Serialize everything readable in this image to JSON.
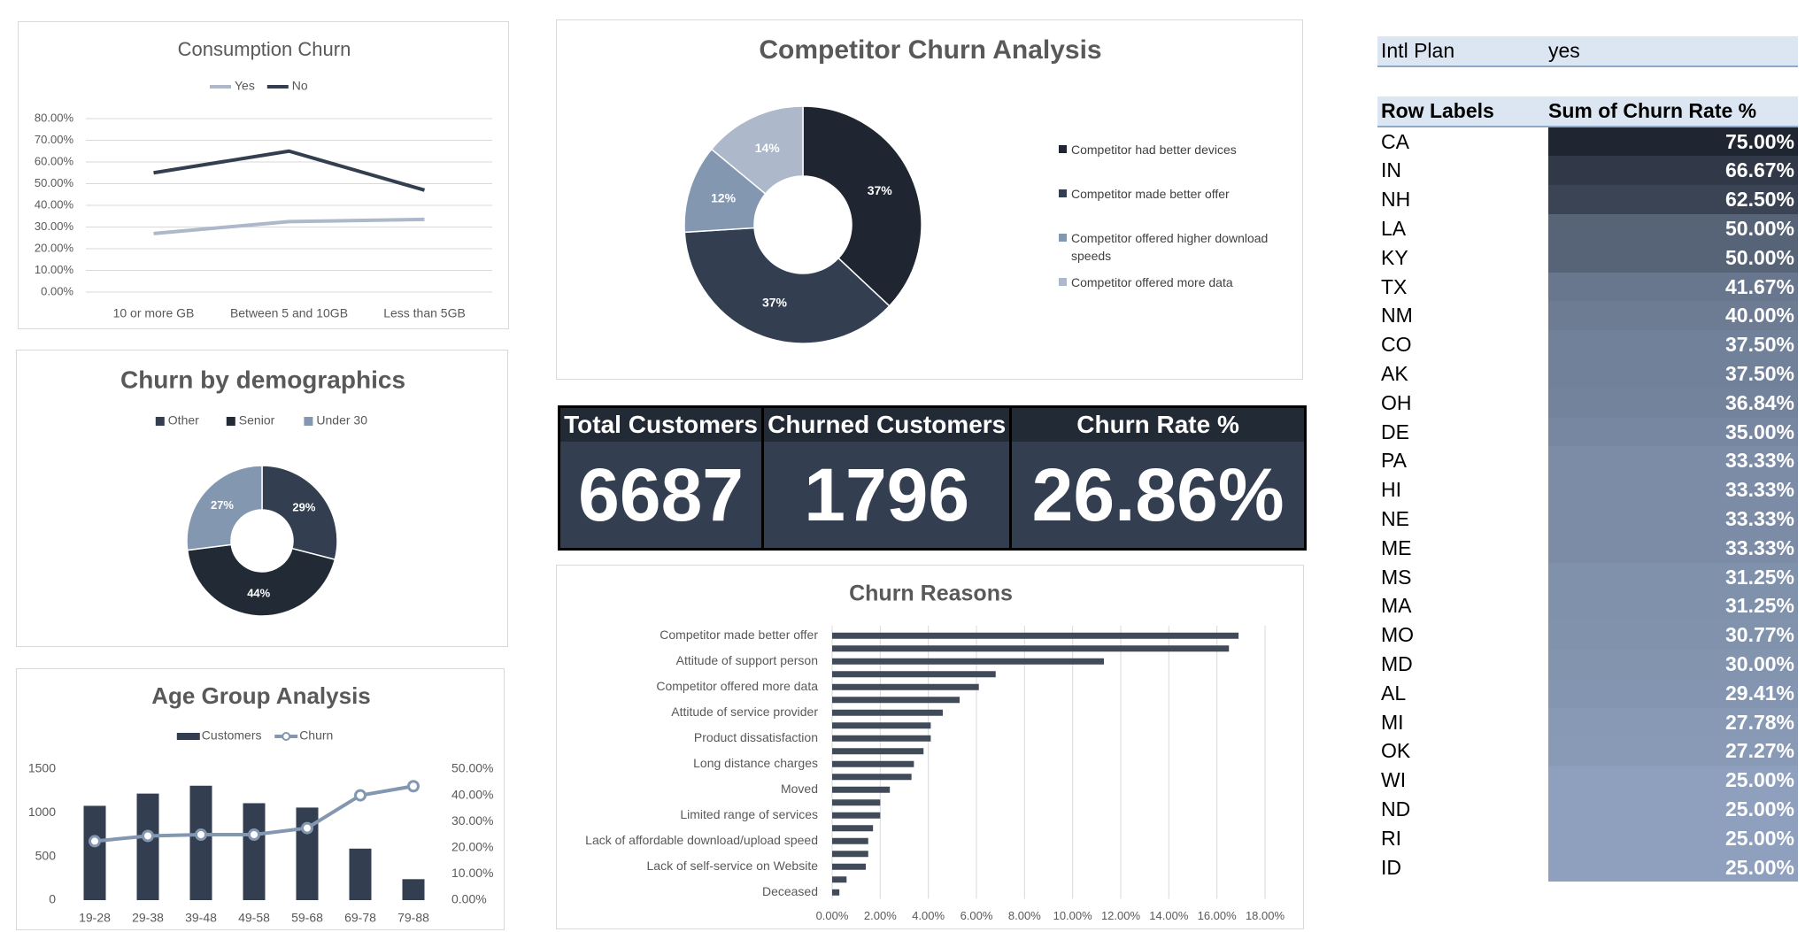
{
  "chart_data": [
    {
      "type": "line",
      "title": "Consumption Churn",
      "categories": [
        "10 or more GB",
        "Between 5 and 10GB",
        "Less than 5GB"
      ],
      "series": [
        {
          "name": "Yes",
          "color": "#adb9ca",
          "values": [
            27,
            32.5,
            33.5
          ]
        },
        {
          "name": "No",
          "color": "#333f50",
          "values": [
            55,
            65,
            47
          ]
        }
      ],
      "ylim": [
        0,
        80
      ],
      "yticks": [
        {
          "value": 0,
          "label": "0.00%"
        },
        {
          "value": 10,
          "label": "10.00%"
        },
        {
          "value": 20,
          "label": "20.00%"
        },
        {
          "value": 30,
          "label": "30.00%"
        },
        {
          "value": 40,
          "label": "40.00%"
        },
        {
          "value": 50,
          "label": "50.00%"
        },
        {
          "value": 60,
          "label": "60.00%"
        },
        {
          "value": 70,
          "label": "70.00%"
        },
        {
          "value": 80,
          "label": "80.00%"
        }
      ],
      "grid": true,
      "legend": "top"
    },
    {
      "type": "donut",
      "title": "Competitor Churn Analysis",
      "categories": [
        "Competitor had better devices",
        "Competitor made better offer",
        "Competitor offered higher download speeds",
        "Competitor offered more data"
      ],
      "values": [
        37,
        37,
        12,
        14
      ],
      "value_labels": [
        "37%",
        "37%",
        "12%",
        "14%"
      ],
      "colors": [
        "#1f2531",
        "#333f50",
        "#8497b0",
        "#adb9ca"
      ],
      "legend": "right"
    },
    {
      "type": "donut",
      "title": "Churn by demographics",
      "categories": [
        "Other",
        "Senior",
        "Under 30"
      ],
      "values": [
        29,
        44,
        27
      ],
      "value_labels": [
        "29%",
        "44%",
        "27%"
      ],
      "colors": [
        "#333f50",
        "#222a35",
        "#8497b0"
      ],
      "legend": "top"
    },
    {
      "type": "combo",
      "title": "Age Group Analysis",
      "categories": [
        "19-28",
        "29-38",
        "39-48",
        "49-58",
        "59-68",
        "69-78",
        "79-88"
      ],
      "series": [
        {
          "name": "Customers",
          "type": "bar",
          "color": "#333f50",
          "values": [
            1080,
            1220,
            1310,
            1110,
            1060,
            590,
            240
          ]
        },
        {
          "name": "Churn",
          "type": "line",
          "axis": "y2",
          "color": "#8497b0",
          "values": [
            22.5,
            24.5,
            25,
            25,
            27.5,
            40,
            43.5
          ]
        }
      ],
      "ylim": [
        0,
        1500
      ],
      "yticks": [
        0,
        500,
        1000,
        1500
      ],
      "y2lim": [
        0,
        50
      ],
      "y2ticks": [
        {
          "value": 0,
          "label": "0.00%"
        },
        {
          "value": 10,
          "label": "10.00%"
        },
        {
          "value": 20,
          "label": "20.00%"
        },
        {
          "value": 30,
          "label": "30.00%"
        },
        {
          "value": 40,
          "label": "40.00%"
        },
        {
          "value": 50,
          "label": "50.00%"
        }
      ],
      "grid": false,
      "legend": "top"
    },
    {
      "type": "barh",
      "title": "Churn Reasons",
      "categories": [
        "Competitor made better offer",
        null,
        "Attitude of support person",
        null,
        "Competitor offered more data",
        null,
        "Attitude of service provider",
        null,
        "Product dissatisfaction",
        null,
        "Long distance charges",
        null,
        "Moved",
        null,
        "Limited range of services",
        null,
        "Lack of affordable download/upload speed",
        null,
        "Lack of self-service on Website",
        null,
        "Deceased"
      ],
      "values": [
        16.9,
        16.5,
        11.3,
        6.8,
        6.1,
        5.3,
        4.6,
        4.1,
        4.1,
        3.8,
        3.4,
        3.3,
        2.4,
        2.0,
        2.0,
        1.7,
        1.5,
        1.5,
        1.4,
        0.6,
        0.3
      ],
      "color": "#404a59",
      "xlim": [
        0,
        18
      ],
      "xticks": [
        {
          "value": 0,
          "label": "0.00%"
        },
        {
          "value": 2,
          "label": "2.00%"
        },
        {
          "value": 4,
          "label": "4.00%"
        },
        {
          "value": 6,
          "label": "6.00%"
        },
        {
          "value": 8,
          "label": "8.00%"
        },
        {
          "value": 10,
          "label": "10.00%"
        },
        {
          "value": 12,
          "label": "12.00%"
        },
        {
          "value": 14,
          "label": "14.00%"
        },
        {
          "value": 16,
          "label": "16.00%"
        },
        {
          "value": 18,
          "label": "18.00%"
        }
      ],
      "grid": true
    }
  ],
  "kpis": [
    {
      "label": "Total Customers",
      "value": 6687
    },
    {
      "label": "Churned Customers",
      "value": 1796
    },
    {
      "label": "Churn Rate %",
      "value": 26.86,
      "value_label": "26.86%"
    }
  ],
  "pivot": {
    "filter": {
      "field": "Intl Plan",
      "value": "yes"
    },
    "headers": [
      "Row Labels",
      "Sum of Churn Rate %"
    ],
    "rows": [
      {
        "state": "CA",
        "value": 75,
        "label": "75.00%"
      },
      {
        "state": "IN",
        "value": 66.67,
        "label": "66.67%"
      },
      {
        "state": "NH",
        "value": 62.5,
        "label": "62.50%"
      },
      {
        "state": "LA",
        "value": 50,
        "label": "50.00%"
      },
      {
        "state": "KY",
        "value": 50,
        "label": "50.00%"
      },
      {
        "state": "TX",
        "value": 41.67,
        "label": "41.67%"
      },
      {
        "state": "NM",
        "value": 40,
        "label": "40.00%"
      },
      {
        "state": "CO",
        "value": 37.5,
        "label": "37.50%"
      },
      {
        "state": "AK",
        "value": 37.5,
        "label": "37.50%"
      },
      {
        "state": "OH",
        "value": 36.84,
        "label": "36.84%"
      },
      {
        "state": "DE",
        "value": 35,
        "label": "35.00%"
      },
      {
        "state": "PA",
        "value": 33.33,
        "label": "33.33%"
      },
      {
        "state": "HI",
        "value": 33.33,
        "label": "33.33%"
      },
      {
        "state": "NE",
        "value": 33.33,
        "label": "33.33%"
      },
      {
        "state": "ME",
        "value": 33.33,
        "label": "33.33%"
      },
      {
        "state": "MS",
        "value": 31.25,
        "label": "31.25%"
      },
      {
        "state": "MA",
        "value": 31.25,
        "label": "31.25%"
      },
      {
        "state": "MO",
        "value": 30.77,
        "label": "30.77%"
      },
      {
        "state": "MD",
        "value": 30,
        "label": "30.00%"
      },
      {
        "state": "AL",
        "value": 29.41,
        "label": "29.41%"
      },
      {
        "state": "MI",
        "value": 27.78,
        "label": "27.78%"
      },
      {
        "state": "OK",
        "value": 27.27,
        "label": "27.27%"
      },
      {
        "state": "WI",
        "value": 25,
        "label": "25.00%"
      },
      {
        "state": "ND",
        "value": 25,
        "label": "25.00%"
      },
      {
        "state": "RI",
        "value": 25,
        "label": "25.00%"
      },
      {
        "state": "ID",
        "value": 25,
        "label": "25.00%"
      }
    ]
  }
}
